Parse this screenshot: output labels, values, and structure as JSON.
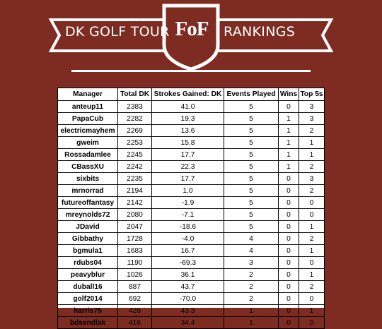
{
  "header": {
    "left_text": "DK GOLF TOUR",
    "logo_text": "FoF",
    "right_text": "RANKINGS"
  },
  "colors": {
    "background": "#7e2b22",
    "banner": "#ffffff",
    "table_bg": "#ffffff"
  },
  "table": {
    "columns": [
      "Manager",
      "Total DK",
      "Strokes Gained: DK",
      "Events Played",
      "Wins",
      "Top 5s"
    ],
    "rows": [
      [
        "anteup11",
        "2383",
        "41.0",
        "5",
        "0",
        "3"
      ],
      [
        "PapaCub",
        "2282",
        "19.3",
        "5",
        "1",
        "3"
      ],
      [
        "electricmayhem",
        "2269",
        "13.6",
        "5",
        "1",
        "2"
      ],
      [
        "gweim",
        "2253",
        "15.8",
        "5",
        "1",
        "1"
      ],
      [
        "Rossadamlee",
        "2245",
        "17.7",
        "5",
        "1",
        "1"
      ],
      [
        "CBassXU",
        "2242",
        "22.3",
        "5",
        "1",
        "2"
      ],
      [
        "sixbits",
        "2235",
        "17.7",
        "5",
        "0",
        "3"
      ],
      [
        "mrnorrad",
        "2194",
        "1.0",
        "5",
        "0",
        "2"
      ],
      [
        "futureoffantasy",
        "2142",
        "-1.9",
        "5",
        "0",
        "0"
      ],
      [
        "mreynolds72",
        "2080",
        "-7.1",
        "5",
        "0",
        "0"
      ],
      [
        "JDavid",
        "2047",
        "-18.6",
        "5",
        "0",
        "1"
      ],
      [
        "Gibbathy",
        "1728",
        "-4.0",
        "4",
        "0",
        "2"
      ],
      [
        "bgmula1",
        "1683",
        "16.7",
        "4",
        "0",
        "1"
      ],
      [
        "rdubs04",
        "1190",
        "-69.3",
        "3",
        "0",
        "0"
      ],
      [
        "peavyblur",
        "1026",
        "36.1",
        "2",
        "0",
        "1"
      ],
      [
        "duball16",
        "887",
        "43.7",
        "2",
        "0",
        "2"
      ],
      [
        "golf2014",
        "692",
        "-70.0",
        "2",
        "0",
        "0"
      ],
      [
        "harris75",
        "426",
        "43.3",
        "1",
        "0",
        "1"
      ],
      [
        "bdsendlak",
        "416",
        "34.4",
        "1",
        "0",
        "0"
      ]
    ]
  }
}
